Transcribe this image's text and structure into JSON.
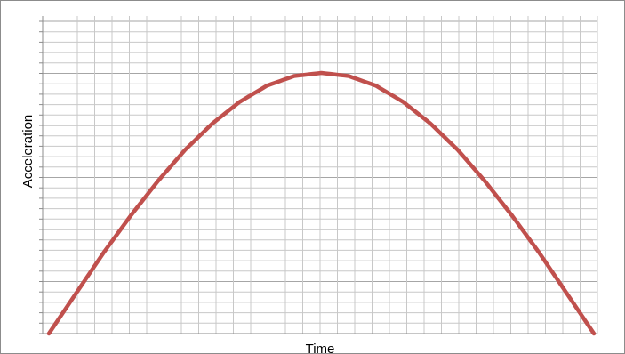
{
  "chart_data": {
    "type": "line",
    "title": "",
    "xlabel": "Time",
    "ylabel": "Acceleration",
    "xlim": [
      0,
      1
    ],
    "ylim": [
      0,
      1
    ],
    "grid": true,
    "legend": "none",
    "series": [
      {
        "color": "#c0504d",
        "x": [
          0,
          0.05,
          0.1,
          0.15,
          0.2,
          0.25,
          0.3,
          0.35,
          0.4,
          0.45,
          0.5,
          0.55,
          0.6,
          0.65,
          0.7,
          0.75,
          0.8,
          0.85,
          0.9,
          0.95,
          1
        ],
        "y": [
          0,
          0.155,
          0.309,
          0.452,
          0.585,
          0.705,
          0.806,
          0.889,
          0.951,
          0.988,
          1.0,
          0.988,
          0.951,
          0.889,
          0.806,
          0.705,
          0.585,
          0.452,
          0.309,
          0.155,
          0
        ]
      }
    ]
  },
  "colors": {
    "grid_major": "#a6a6a6",
    "grid_minor": "#c8c8c8",
    "frame": "#8c8c8c"
  }
}
